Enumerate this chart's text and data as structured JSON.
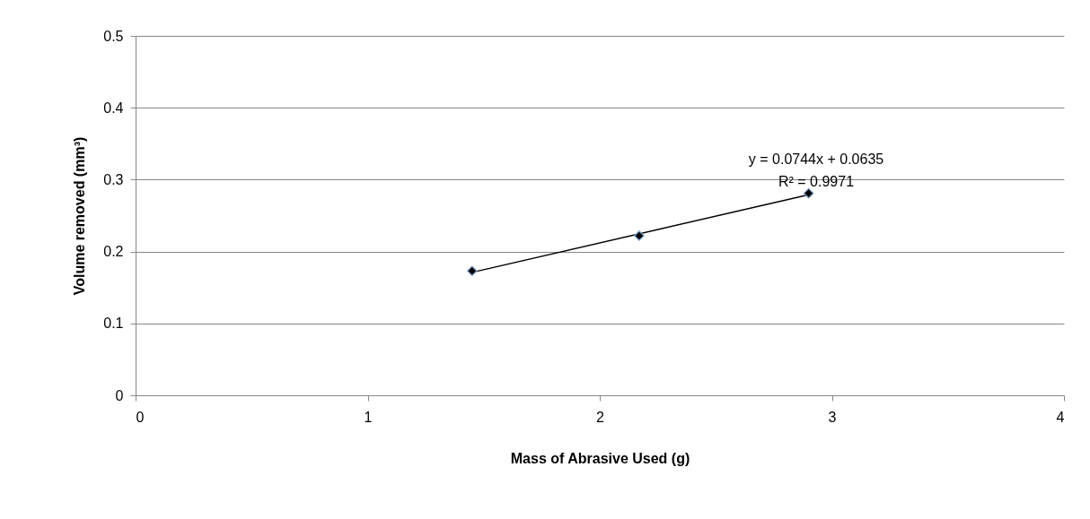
{
  "chart_data": {
    "type": "scatter",
    "xlabel": "Mass of Abrasive Used (g)",
    "ylabel": "Volume removed (mm³)",
    "xlim": [
      0,
      4
    ],
    "xticks": [
      0,
      1,
      2,
      3,
      4
    ],
    "ylim": [
      0,
      0.5
    ],
    "yticks": [
      0,
      0.1,
      0.2,
      0.3,
      0.4,
      0.5
    ],
    "grid": "y",
    "marker": "diamond",
    "annotations": [
      "y = 0.0744x + 0.0635",
      "R² = 0.9971"
    ],
    "series": [
      {
        "color": "#000000",
        "x": [
          1.45,
          2.17,
          2.9
        ],
        "values": [
          0.173,
          0.222,
          0.281
        ]
      },
      {
        "type": "line",
        "color": "#000000",
        "x": [
          1.45,
          2.9
        ],
        "values": [
          0.171,
          0.279
        ],
        "marker": "none",
        "line_style": "solid"
      }
    ]
  }
}
